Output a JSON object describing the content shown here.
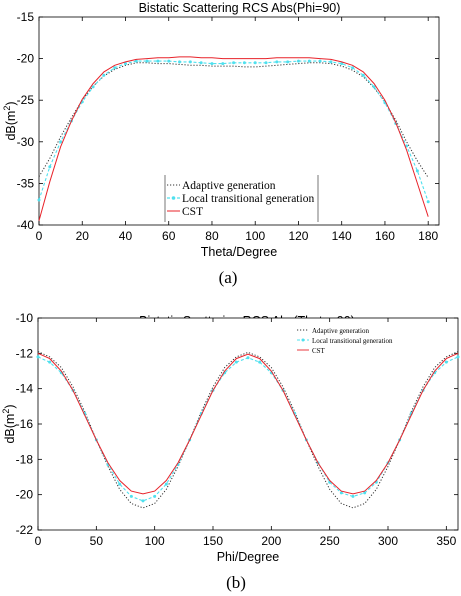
{
  "chart_data": [
    {
      "type": "line",
      "panel_caption": "(a)",
      "title": "Bistatic Scattering RCS Abs(Phi=90)",
      "xlabel": "Theta/Degree",
      "ylabel_main": "dB(m",
      "ylabel_sup": "2",
      "ylabel_close": ")",
      "xlim": [
        0,
        185
      ],
      "ylim": [
        -40,
        -15
      ],
      "xticks": [
        0,
        20,
        40,
        60,
        80,
        100,
        120,
        140,
        160,
        180
      ],
      "yticks": [
        -40,
        -35,
        -30,
        -25,
        -20,
        -15
      ],
      "legend_position": "lower-center",
      "x": [
        0,
        5,
        10,
        15,
        20,
        25,
        30,
        35,
        40,
        45,
        50,
        55,
        60,
        65,
        70,
        75,
        80,
        85,
        90,
        95,
        100,
        105,
        110,
        115,
        120,
        125,
        130,
        135,
        140,
        145,
        150,
        155,
        160,
        165,
        170,
        175,
        180
      ],
      "series": [
        {
          "name": "Adaptive generation",
          "color": "#333333",
          "style": "dotted",
          "values": [
            -34.2,
            -32.0,
            -29.4,
            -27.1,
            -25.0,
            -23.3,
            -22.1,
            -21.3,
            -20.8,
            -20.5,
            -20.5,
            -20.6,
            -20.6,
            -20.7,
            -20.8,
            -20.8,
            -20.9,
            -20.9,
            -20.9,
            -21.0,
            -21.0,
            -20.9,
            -20.8,
            -20.7,
            -20.6,
            -20.5,
            -20.5,
            -20.6,
            -20.9,
            -21.4,
            -22.2,
            -23.5,
            -25.2,
            -27.4,
            -30.0,
            -32.3,
            -34.3
          ]
        },
        {
          "name": "Local transitional generation",
          "color": "#4fe0ee",
          "style": "dash-marker",
          "values": [
            -37.0,
            -33.0,
            -30.0,
            -27.5,
            -25.2,
            -23.4,
            -22.0,
            -21.1,
            -20.6,
            -20.3,
            -20.3,
            -20.3,
            -20.3,
            -20.4,
            -20.4,
            -20.5,
            -20.6,
            -20.6,
            -20.5,
            -20.5,
            -20.5,
            -20.5,
            -20.4,
            -20.4,
            -20.3,
            -20.3,
            -20.3,
            -20.4,
            -20.6,
            -21.1,
            -22.0,
            -23.4,
            -25.3,
            -27.8,
            -30.5,
            -33.5,
            -37.2
          ]
        },
        {
          "name": "CST",
          "color": "#e8232a",
          "style": "solid",
          "values": [
            -39.5,
            -34.8,
            -30.6,
            -27.5,
            -24.9,
            -23.0,
            -21.6,
            -20.8,
            -20.4,
            -20.1,
            -20.0,
            -19.9,
            -19.9,
            -19.8,
            -19.8,
            -19.9,
            -19.9,
            -20.0,
            -20.0,
            -20.0,
            -20.0,
            -20.0,
            -19.9,
            -19.9,
            -19.9,
            -19.9,
            -20.0,
            -20.1,
            -20.4,
            -20.8,
            -21.6,
            -23.0,
            -25.0,
            -27.7,
            -31.0,
            -35.0,
            -39.0
          ]
        }
      ]
    },
    {
      "type": "line",
      "panel_caption": "(b)",
      "title": "Bistatic Scattering RCS Abs(Theta=90)",
      "xlabel": "Phi/Degree",
      "ylabel_main": "dB(m",
      "ylabel_sup": "2",
      "ylabel_close": ")",
      "xlim": [
        0,
        360
      ],
      "ylim": [
        -22,
        -10
      ],
      "xticks": [
        0,
        50,
        100,
        150,
        200,
        250,
        300,
        350
      ],
      "yticks": [
        -22,
        -20,
        -18,
        -16,
        -14,
        -12,
        -10
      ],
      "legend_position": "top-right",
      "x": [
        0,
        10,
        20,
        30,
        40,
        50,
        60,
        70,
        80,
        90,
        100,
        110,
        120,
        130,
        140,
        150,
        160,
        170,
        180,
        190,
        200,
        210,
        220,
        230,
        240,
        250,
        260,
        270,
        280,
        290,
        300,
        310,
        320,
        330,
        340,
        350,
        360
      ],
      "series": [
        {
          "name": "Adaptive generation",
          "color": "#333333",
          "style": "dotted",
          "values": [
            -11.9,
            -12.2,
            -12.8,
            -13.9,
            -15.3,
            -16.9,
            -18.4,
            -19.7,
            -20.5,
            -20.75,
            -20.5,
            -19.7,
            -18.4,
            -16.9,
            -15.3,
            -13.9,
            -12.8,
            -12.2,
            -11.95,
            -12.2,
            -12.8,
            -13.9,
            -15.3,
            -16.9,
            -18.4,
            -19.7,
            -20.5,
            -20.75,
            -20.5,
            -19.7,
            -18.4,
            -16.9,
            -15.3,
            -13.9,
            -12.8,
            -12.2,
            -11.9
          ]
        },
        {
          "name": "Local transitional generation",
          "color": "#4fe0ee",
          "style": "dash-marker",
          "values": [
            -12.2,
            -12.5,
            -13.1,
            -14.1,
            -15.4,
            -16.9,
            -18.3,
            -19.4,
            -20.1,
            -20.35,
            -20.1,
            -19.4,
            -18.3,
            -16.9,
            -15.4,
            -14.1,
            -13.1,
            -12.5,
            -12.25,
            -12.5,
            -13.1,
            -14.1,
            -15.4,
            -16.9,
            -18.2,
            -19.3,
            -19.9,
            -20.1,
            -19.9,
            -19.3,
            -18.2,
            -16.9,
            -15.4,
            -14.1,
            -13.1,
            -12.5,
            -12.2
          ]
        },
        {
          "name": "CST",
          "color": "#e8232a",
          "style": "solid",
          "values": [
            -12.0,
            -12.3,
            -13.0,
            -14.1,
            -15.5,
            -16.9,
            -18.2,
            -19.2,
            -19.8,
            -19.95,
            -19.8,
            -19.2,
            -18.2,
            -16.9,
            -15.5,
            -14.1,
            -13.0,
            -12.3,
            -12.05,
            -12.3,
            -13.0,
            -14.1,
            -15.5,
            -16.9,
            -18.2,
            -19.2,
            -19.8,
            -19.95,
            -19.8,
            -19.2,
            -18.2,
            -16.9,
            -15.5,
            -14.1,
            -13.0,
            -12.3,
            -12.0
          ]
        }
      ]
    }
  ]
}
